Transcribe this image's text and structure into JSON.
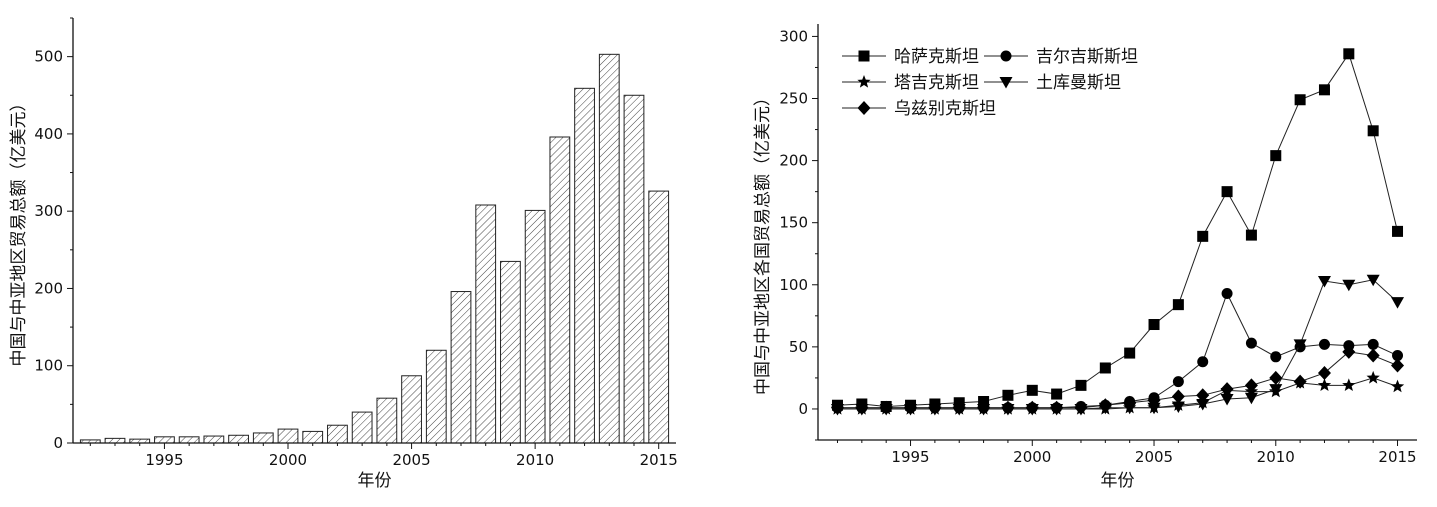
{
  "chart_data": [
    {
      "type": "bar",
      "xlabel": "年份",
      "ylabel": "中国与中亚地区贸易总额（亿美元）",
      "categories": [
        1992,
        1993,
        1994,
        1995,
        1996,
        1997,
        1998,
        1999,
        2000,
        2001,
        2002,
        2003,
        2004,
        2005,
        2006,
        2007,
        2008,
        2009,
        2010,
        2011,
        2012,
        2013,
        2014,
        2015
      ],
      "values": [
        4,
        6,
        5,
        8,
        8,
        9,
        10,
        13,
        18,
        15,
        23,
        40,
        58,
        87,
        120,
        196,
        308,
        235,
        301,
        396,
        459,
        503,
        450,
        326
      ],
      "xlim": [
        1991.3,
        2015.7
      ],
      "ylim": [
        0,
        550
      ],
      "xticks": [
        1995,
        2000,
        2005,
        2010,
        2015
      ],
      "yticks": [
        0,
        100,
        200,
        300,
        400,
        500
      ],
      "bar_pattern": "hatched",
      "grid": false
    },
    {
      "type": "line",
      "xlabel": "年份",
      "ylabel": "中国与中亚地区各国贸易总额（亿美元）",
      "x": [
        1992,
        1993,
        1994,
        1995,
        1996,
        1997,
        1998,
        1999,
        2000,
        2001,
        2002,
        2003,
        2004,
        2005,
        2006,
        2007,
        2008,
        2009,
        2010,
        2011,
        2012,
        2013,
        2014,
        2015
      ],
      "series": [
        {
          "name": "哈萨克斯坦",
          "marker": "square",
          "values": [
            3,
            4,
            2,
            3,
            4,
            5,
            6,
            11,
            15,
            12,
            19,
            33,
            45,
            68,
            84,
            139,
            175,
            140,
            204,
            249,
            257,
            286,
            224,
            143
          ]
        },
        {
          "name": "吉尔吉斯斯坦",
          "marker": "circle",
          "values": [
            1,
            1,
            1,
            1,
            1,
            1,
            1,
            1,
            1,
            1,
            2,
            3,
            6,
            9,
            22,
            38,
            93,
            53,
            42,
            50,
            52,
            51,
            52,
            43
          ]
        },
        {
          "name": "塔吉克斯坦",
          "marker": "star",
          "values": [
            0,
            0,
            0,
            0,
            0,
            0,
            0,
            0,
            0,
            0,
            0,
            0,
            1,
            1,
            3,
            5,
            15,
            14,
            14,
            21,
            19,
            19,
            25,
            18
          ]
        },
        {
          "name": "土库曼斯坦",
          "marker": "triangle-down",
          "values": [
            0,
            0,
            0,
            0,
            0,
            0,
            0,
            0,
            0,
            0,
            0,
            1,
            1,
            1,
            2,
            4,
            8,
            9,
            16,
            52,
            103,
            100,
            104,
            86
          ]
        },
        {
          "name": "乌兹别克斯坦",
          "marker": "diamond",
          "values": [
            1,
            1,
            1,
            1,
            1,
            1,
            1,
            1,
            1,
            1,
            1,
            3,
            5,
            7,
            10,
            11,
            16,
            19,
            25,
            22,
            29,
            46,
            43,
            35
          ]
        }
      ],
      "xlim": [
        1991.2,
        2015.8
      ],
      "ylim": [
        -25,
        310
      ],
      "xticks": [
        1995,
        2000,
        2005,
        2010,
        2015
      ],
      "yticks": [
        0,
        50,
        100,
        150,
        200,
        250,
        300
      ],
      "legend_position": "top-left",
      "grid": false
    }
  ]
}
